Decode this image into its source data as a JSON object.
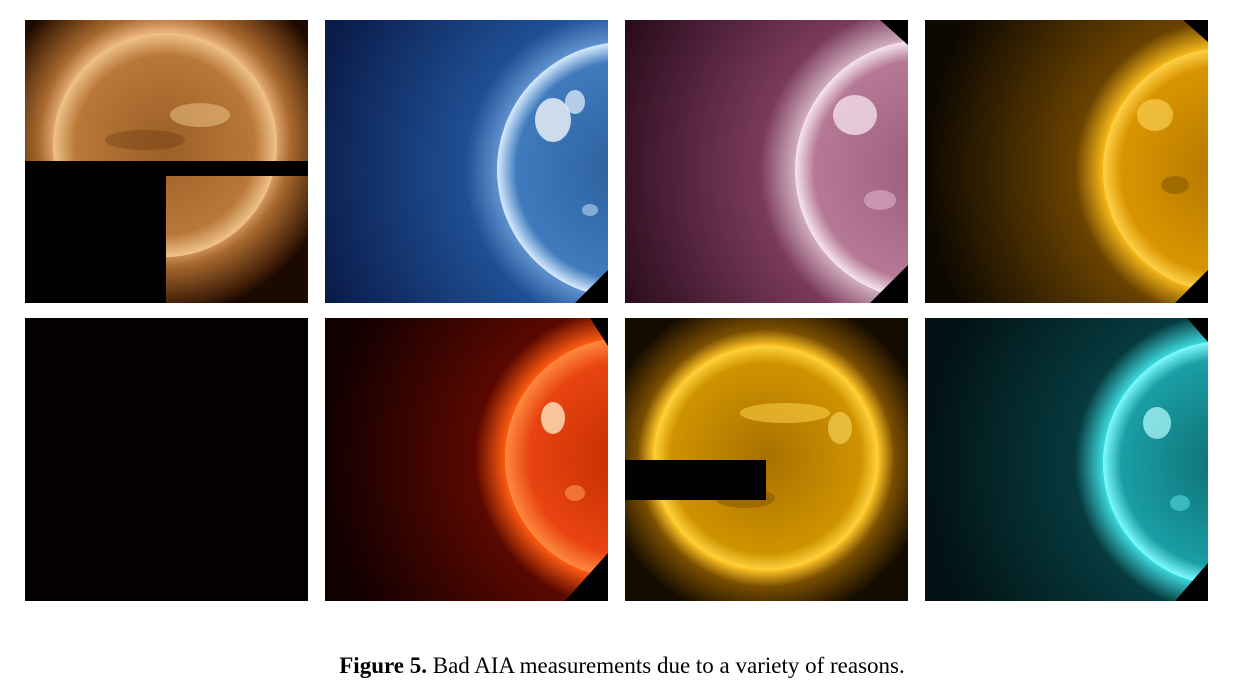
{
  "figure": {
    "label": "Figure 5.",
    "caption": "Bad AIA measurements due to a variety of reasons."
  },
  "panels": [
    {
      "name": "panel-copper-partial-readout",
      "color": "#c8884a",
      "glow": "#f5d6a8",
      "defect": "missing lower-left quadrant"
    },
    {
      "name": "panel-blue-offset-limb",
      "color": "#2f6fb5",
      "glow": "#e8f1ff",
      "defect": "off-center disk"
    },
    {
      "name": "panel-magenta-offset-limb",
      "color": "#a3627f",
      "glow": "#f2dbe6",
      "defect": "off-center disk"
    },
    {
      "name": "panel-gold-offset-limb",
      "color": "#e6a100",
      "glow": "#ffd75a",
      "defect": "off-center disk"
    },
    {
      "name": "panel-black-empty",
      "color": "#050000",
      "glow": "#050000",
      "defect": "empty image"
    },
    {
      "name": "panel-red-offset-limb",
      "color": "#e03a05",
      "glow": "#ffb070",
      "defect": "off-center disk"
    },
    {
      "name": "panel-yellow-block-missing",
      "color": "#d09400",
      "glow": "#ffd447",
      "defect": "missing rectangular block"
    },
    {
      "name": "panel-cyan-offset-limb",
      "color": "#1aa3a8",
      "glow": "#6ff6f8",
      "defect": "off-center disk"
    }
  ]
}
